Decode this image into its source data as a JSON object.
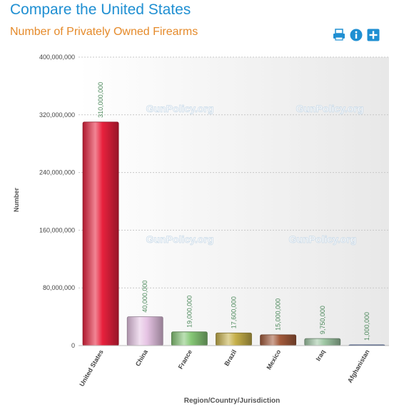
{
  "header": {
    "title": "Compare the United States",
    "subtitle": "Number of Privately Owned Firearms"
  },
  "toolbar": {
    "buttons": [
      {
        "icon": "printer-icon"
      },
      {
        "icon": "info-icon"
      },
      {
        "icon": "plus-icon"
      }
    ],
    "accent_color": "#1f8fd2"
  },
  "watermark": "GunPolicy.org",
  "chart_data": {
    "type": "bar",
    "title": "Number of Privately Owned Firearms",
    "xlabel": "Region/Country/Jurisdiction",
    "ylabel": "Number",
    "categories": [
      "United States",
      "China",
      "France",
      "Brazil",
      "Mexico",
      "Iraq",
      "Afghanistan"
    ],
    "values": [
      310000000,
      40000000,
      19000000,
      17600000,
      15000000,
      9750000,
      1000000
    ],
    "value_labels": [
      "310,000,000",
      "40,000,000",
      "19,000,000",
      "17,600,000",
      "15,000,000",
      "9,750,000",
      "1,000,000"
    ],
    "ylim": [
      0,
      400000000
    ],
    "y_ticks": [
      0,
      80000000,
      160000000,
      240000000,
      320000000,
      400000000
    ],
    "y_tick_labels": [
      "0",
      "80,000,000",
      "160,000,000",
      "240,000,000",
      "320,000,000",
      "400,000,000"
    ],
    "bar_colors": [
      "#e8213d",
      "#e6c4e4",
      "#86c776",
      "#c6b04a",
      "#a35a3b",
      "#9fc7a4",
      "#24479c"
    ],
    "grid": true,
    "legend": "none"
  }
}
